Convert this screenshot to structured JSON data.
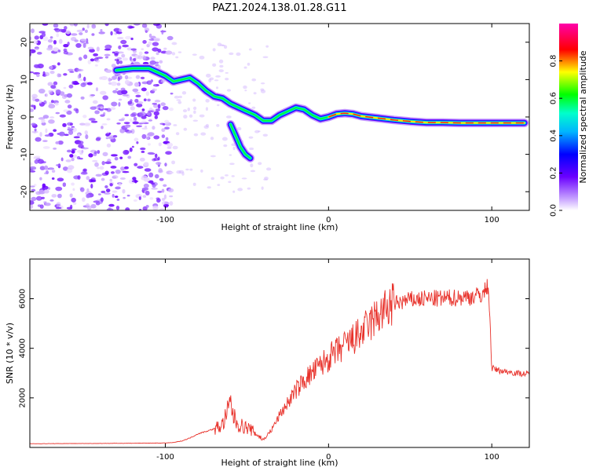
{
  "figure": {
    "title": "PAZ1.2024.138.01.28.G11"
  },
  "chart_data": [
    {
      "type": "heatmap",
      "xlabel": "Height of straight line (km)",
      "ylabel": "Frequency (Hz)",
      "xlim": [
        -183,
        123
      ],
      "ylim": [
        -25,
        25
      ],
      "xticks": [
        -100,
        0,
        100
      ],
      "yticks": [
        -20,
        -10,
        0,
        10,
        20
      ],
      "colorbar": {
        "label": "Normalized spectral amplitude",
        "range": [
          0,
          1
        ],
        "ticks": [
          "0.0",
          "0.2",
          "0.4",
          "0.6",
          "0.8"
        ],
        "colormap": "rainbow (white-purple-blue-cyan-green-yellow-red-magenta)"
      },
      "ridge": {
        "description": "Dominant spectral ridge (approx. frequency vs height)",
        "x": [
          -130,
          -120,
          -110,
          -100,
          -95,
          -90,
          -85,
          -80,
          -75,
          -70,
          -65,
          -60,
          -55,
          -50,
          -45,
          -40,
          -35,
          -30,
          -25,
          -20,
          -15,
          -10,
          -5,
          0,
          5,
          10,
          15,
          20,
          30,
          40,
          50,
          60,
          70,
          80,
          90,
          100,
          110,
          120
        ],
        "y": [
          12.5,
          13,
          13,
          11,
          9.5,
          10,
          10.5,
          9,
          7,
          5.5,
          5,
          3.5,
          2.5,
          1.5,
          0.5,
          -1,
          -1,
          0.5,
          1.5,
          2.5,
          2,
          0.5,
          -0.5,
          0,
          0.8,
          1,
          0.8,
          0.2,
          -0.3,
          -0.8,
          -1.2,
          -1.5,
          -1.5,
          -1.6,
          -1.6,
          -1.6,
          -1.6,
          -1.6
        ]
      },
      "branch": {
        "description": "Secondary branch",
        "x": [
          -60,
          -57,
          -54,
          -51,
          -48
        ],
        "y": [
          -2,
          -5,
          -8,
          -10,
          -11
        ]
      }
    },
    {
      "type": "line",
      "xlabel": "Height of straight line (km)",
      "ylabel": "SNR (10 * v/v)",
      "xlim": [
        -183,
        123
      ],
      "ylim": [
        0,
        7600
      ],
      "xticks": [
        -100,
        0,
        100
      ],
      "yticks": [
        2000,
        4000,
        6000
      ],
      "color": "#e8312a",
      "series": [
        {
          "x": [
            -183,
            -150,
            -120,
            -100,
            -95,
            -90,
            -85,
            -80,
            -75,
            -70,
            -65,
            -62,
            -60,
            -58,
            -55,
            -50,
            -45,
            -40,
            -35,
            -30,
            -25,
            -20,
            -15,
            -10,
            -5,
            0,
            10,
            20,
            30,
            40,
            50,
            60,
            70,
            80,
            90,
            95,
            98,
            100,
            105,
            110,
            115,
            123
          ],
          "y": [
            150,
            160,
            170,
            180,
            200,
            260,
            380,
            550,
            650,
            750,
            900,
            1400,
            1800,
            1200,
            900,
            800,
            600,
            300,
            700,
            1300,
            1800,
            2300,
            2700,
            3000,
            3300,
            3600,
            4100,
            4600,
            5300,
            5800,
            5950,
            6000,
            6000,
            6050,
            6100,
            6200,
            6600,
            3200,
            3100,
            3050,
            3000,
            2950
          ]
        }
      ]
    }
  ]
}
